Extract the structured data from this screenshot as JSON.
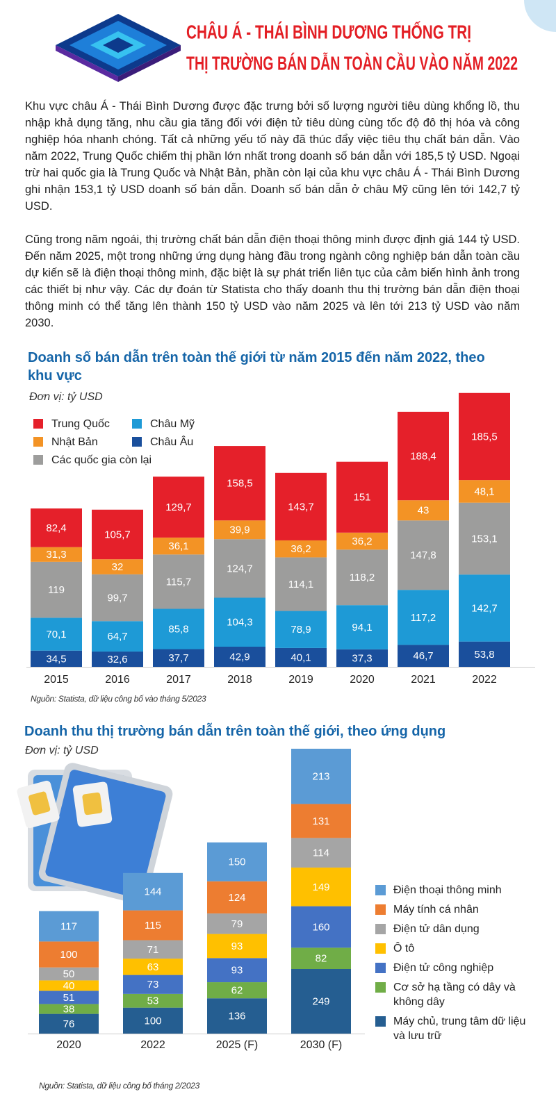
{
  "header": {
    "title": [
      "CHÂU Á - THÁI BÌNH DƯƠNG THỐNG TRỊ",
      "THỊ TRƯỜNG BÁN DẪN TOÀN CẦU VÀO NĂM 2022"
    ]
  },
  "paragraphs": [
    "Khu vực châu Á - Thái Bình Dương được đặc trưng bởi số lượng người tiêu dùng khổng lồ, thu nhập khả dụng tăng, nhu cầu gia tăng đối với điện tử tiêu dùng cùng tốc độ đô thị hóa và công nghiệp hóa nhanh chóng. Tất cả những yếu tố này đã thúc đẩy việc tiêu thụ chất bán dẫn. Vào năm 2022, Trung Quốc chiếm thị phần lớn nhất trong doanh số bán dẫn với 185,5 tỷ USD. Ngoại trừ hai quốc gia là Trung Quốc và Nhật Bản, phần còn lại của khu vực châu Á - Thái Bình Dương ghi nhận 153,1 tỷ USD doanh số bán dẫn. Doanh số bán dẫn ở châu Mỹ cũng lên tới 142,7 tỷ USD.",
    "Cũng trong năm ngoái, thị trường chất bán dẫn điện thoại thông minh được định giá 144 tỷ USD. Đến năm 2025, một trong những ứng dụng hàng đầu trong ngành công nghiệp bán dẫn toàn cầu dự kiến sẽ là điện thoại thông minh, đặc biệt là sự phát triển liên tục của cảm biến hình ảnh trong các thiết bị như vậy. Các dự đoán từ Statista cho thấy doanh thu thị trường bán dẫn điện thoại thông minh có thể tăng lên thành 150 tỷ USD vào năm 2025 và lên tới 213 tỷ USD vào năm 2030."
  ],
  "chart_data": [
    {
      "type": "bar",
      "stacked": true,
      "title": "Doanh số bán dẫn trên toàn thế giới từ năm 2015 đến năm 2022, theo khu vực",
      "subtitle": "Đơn vị: tỷ USD",
      "source": "Nguồn: Statista, dữ liệu công bố vào tháng 5/2023",
      "categories": [
        "2015",
        "2016",
        "2017",
        "2018",
        "2019",
        "2020",
        "2021",
        "2022"
      ],
      "series": [
        {
          "name": "Trung Quốc",
          "color": "#e5202a",
          "values": [
            82.4,
            105.7,
            129.7,
            158.5,
            143.7,
            151,
            188.4,
            185.5
          ],
          "value_labels": [
            "82,4",
            "105,7",
            "129,7",
            "158,5",
            "143,7",
            "151",
            "188,4",
            "185,5"
          ]
        },
        {
          "name": "Nhật Bản",
          "color": "#f39325",
          "values": [
            31.3,
            32,
            36.1,
            39.9,
            36.2,
            36.2,
            43,
            48.1
          ],
          "value_labels": [
            "31,3",
            "32",
            "36,1",
            "39,9",
            "36,2",
            "36,2",
            "43",
            "48,1"
          ]
        },
        {
          "name": "Các quốc gia còn lại",
          "color": "#9d9d9c",
          "values": [
            119,
            99.7,
            115.7,
            124.7,
            114.1,
            118.2,
            147.8,
            153.1
          ],
          "value_labels": [
            "119",
            "99,7",
            "115,7",
            "124,7",
            "114,1",
            "118,2",
            "147,8",
            "153,1"
          ]
        },
        {
          "name": "Châu Mỹ",
          "color": "#1e9ad6",
          "values": [
            70.1,
            64.7,
            85.8,
            104.3,
            78.9,
            94.1,
            117.2,
            142.7
          ],
          "value_labels": [
            "70,1",
            "64,7",
            "85,8",
            "104,3",
            "78,9",
            "94,1",
            "117,2",
            "142,7"
          ]
        },
        {
          "name": "Châu Âu",
          "color": "#1a4f9c",
          "values": [
            34.5,
            32.6,
            37.7,
            42.9,
            40.1,
            37.3,
            46.7,
            53.8
          ],
          "value_labels": [
            "34,5",
            "32,6",
            "37,7",
            "42,9",
            "40,1",
            "37,3",
            "46,7",
            "53,8"
          ]
        }
      ]
    },
    {
      "type": "bar",
      "stacked": true,
      "title": "Doanh thu thị trường bán dẫn trên toàn thế giới, theo ứng dụng",
      "subtitle": "Đơn vị: tỷ USD",
      "source": "Nguồn: Statista, dữ liệu công bố  tháng 2/2023",
      "categories": [
        "2020",
        "2022",
        "2025 (F)",
        "2030 (F)"
      ],
      "series": [
        {
          "name": "Điện thoại thông minh",
          "color": "#5b9bd5",
          "values": [
            117,
            144,
            150,
            213
          ]
        },
        {
          "name": "Máy tính cá nhân",
          "color": "#ed7d31",
          "values": [
            100,
            115,
            124,
            131
          ]
        },
        {
          "name": "Điện tử dân dụng",
          "color": "#a5a5a5",
          "values": [
            50,
            71,
            79,
            114
          ]
        },
        {
          "name": "Ô tô",
          "color": "#ffc000",
          "values": [
            40,
            63,
            93,
            149
          ]
        },
        {
          "name": "Điện tử công nghiệp",
          "color": "#4472c4",
          "values": [
            51,
            73,
            93,
            160
          ]
        },
        {
          "name": "Cơ sở hạ tầng có dây và không dây",
          "color": "#70ad47",
          "values": [
            38,
            53,
            62,
            82
          ]
        },
        {
          "name": "Máy chủ, trung tâm dữ liệu và lưu trữ",
          "color": "#255e91",
          "values": [
            76,
            100,
            136,
            249
          ]
        }
      ]
    }
  ]
}
